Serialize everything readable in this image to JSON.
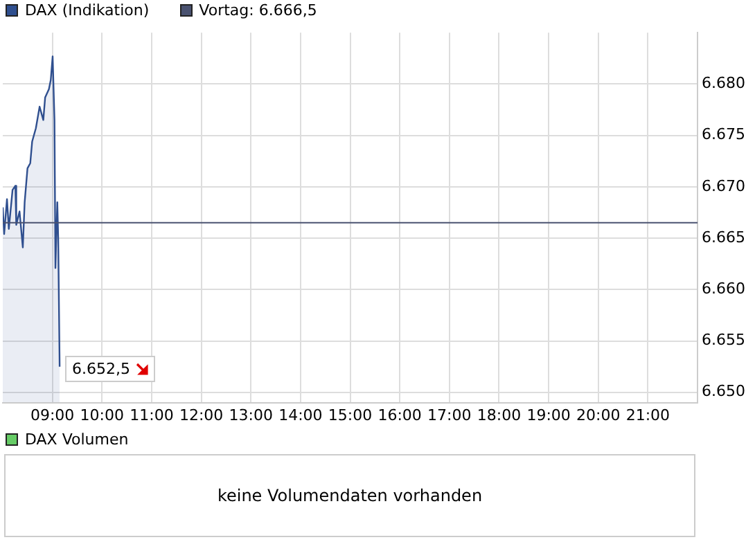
{
  "chart_data": [
    {
      "type": "area",
      "legend": "top left",
      "grid": true,
      "marker": "none",
      "xlim": [
        8,
        22
      ],
      "xticks": [
        {
          "value": 9,
          "label": "09:00"
        },
        {
          "value": 10,
          "label": "10:00"
        },
        {
          "value": 11,
          "label": "11:00"
        },
        {
          "value": 12,
          "label": "12:00"
        },
        {
          "value": 13,
          "label": "13:00"
        },
        {
          "value": 14,
          "label": "14:00"
        },
        {
          "value": 15,
          "label": "15:00"
        },
        {
          "value": 16,
          "label": "16:00"
        },
        {
          "value": 17,
          "label": "17:00"
        },
        {
          "value": 18,
          "label": "18:00"
        },
        {
          "value": 19,
          "label": "19:00"
        },
        {
          "value": 20,
          "label": "20:00"
        },
        {
          "value": 21,
          "label": "21:00"
        }
      ],
      "ylim": [
        6649,
        6685
      ],
      "yticks": [
        {
          "value": 6650,
          "label": "6.650"
        },
        {
          "value": 6655,
          "label": "6.655"
        },
        {
          "value": 6660,
          "label": "6.660"
        },
        {
          "value": 6665,
          "label": "6.665"
        },
        {
          "value": 6670,
          "label": "6.670"
        },
        {
          "value": 6675,
          "label": "6.675"
        },
        {
          "value": 6680,
          "label": "6.680"
        }
      ],
      "x": [
        8.0,
        8.028,
        8.085,
        8.122,
        8.197,
        8.254,
        8.272,
        8.338,
        8.404,
        8.441,
        8.498,
        8.554,
        8.592,
        8.667,
        8.742,
        8.817,
        8.854,
        8.93,
        8.967,
        9.005,
        9.042,
        9.061,
        9.099,
        9.117,
        9.146
      ],
      "series": [
        {
          "name": "DAX (Indikation)",
          "color": "#2f4f8f",
          "values": [
            6668.0,
            6665.4,
            6668.8,
            6665.9,
            6669.7,
            6670.1,
            6666.3,
            6667.6,
            6664.1,
            6668.5,
            6671.8,
            6672.3,
            6674.4,
            6675.7,
            6677.8,
            6676.5,
            6678.7,
            6679.5,
            6680.4,
            6682.7,
            6676.5,
            6662.1,
            6668.5,
            6665.0,
            6652.5
          ]
        }
      ],
      "ref_lines": [
        {
          "axis": "y",
          "value": 6666.5,
          "label": "Vortag: 6.666,5",
          "color": "#4a5270"
        }
      ],
      "annotations": [
        {
          "text": "6.652,5",
          "x": 9.146,
          "y": 6652.5
        }
      ]
    },
    {
      "type": "other",
      "title": "DAX Volumen",
      "annotations": [
        "keine Volumendaten vorhanden"
      ]
    }
  ]
}
